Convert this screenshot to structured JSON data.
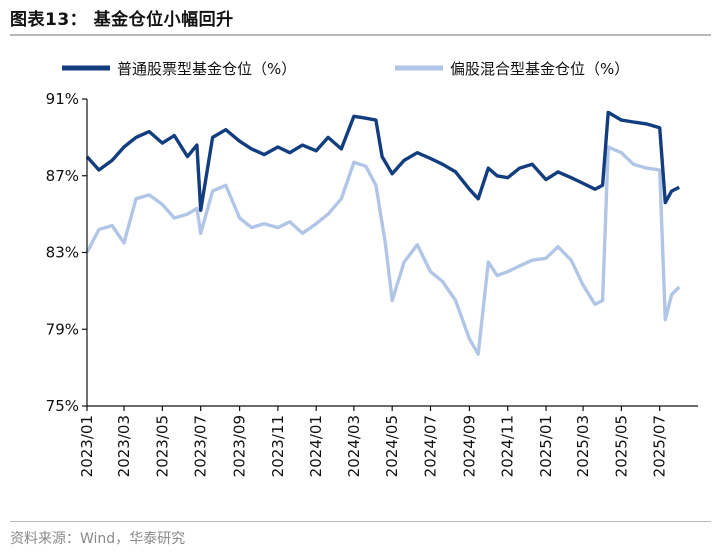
{
  "title": "图表13： 基金仓位小幅回升",
  "source": "资料来源：Wind，华泰研究",
  "chart_data": {
    "type": "line",
    "ylim": [
      75,
      91
    ],
    "yticks": [
      "75%",
      "79%",
      "83%",
      "87%",
      "91%"
    ],
    "ytick_values": [
      75,
      79,
      83,
      87,
      91
    ],
    "xlim": [
      "2023-01-01",
      "2025-08-31"
    ],
    "xticks": [
      "2023/01",
      "2023/03",
      "2023/05",
      "2023/07",
      "2023/09",
      "2023/11",
      "2024/01",
      "2024/03",
      "2024/05",
      "2024/07",
      "2024/09",
      "2024/11",
      "2025/01",
      "2025/03",
      "2025/05",
      "2025/07"
    ],
    "xtick_dates": [
      "2023-01-01",
      "2023-03-01",
      "2023-05-01",
      "2023-07-01",
      "2023-09-01",
      "2023-11-01",
      "2024-01-01",
      "2024-03-01",
      "2024-05-01",
      "2024-07-01",
      "2024-09-01",
      "2024-11-01",
      "2025-01-01",
      "2025-03-01",
      "2025-05-01",
      "2025-07-01"
    ],
    "legend": "top",
    "grid": false,
    "series": [
      {
        "name": "普通股票型基金仓位（%）",
        "color": "#123d7f",
        "x": [
          "2023-01-01",
          "2023-01-20",
          "2023-02-10",
          "2023-03-01",
          "2023-03-20",
          "2023-04-10",
          "2023-05-01",
          "2023-05-20",
          "2023-06-10",
          "2023-06-25",
          "2023-07-01",
          "2023-07-20",
          "2023-08-10",
          "2023-09-01",
          "2023-09-20",
          "2023-10-10",
          "2023-11-01",
          "2023-11-20",
          "2023-12-10",
          "2024-01-01",
          "2024-01-20",
          "2024-02-10",
          "2024-03-01",
          "2024-03-20",
          "2024-04-05",
          "2024-04-15",
          "2024-05-01",
          "2024-05-20",
          "2024-06-10",
          "2024-07-01",
          "2024-07-20",
          "2024-08-10",
          "2024-09-01",
          "2024-09-15",
          "2024-10-01",
          "2024-10-15",
          "2024-11-01",
          "2024-11-20",
          "2024-12-10",
          "2025-01-01",
          "2025-01-20",
          "2025-02-10",
          "2025-03-01",
          "2025-03-20",
          "2025-04-01",
          "2025-04-10",
          "2025-05-01",
          "2025-05-20",
          "2025-06-10",
          "2025-07-01",
          "2025-07-10",
          "2025-07-20",
          "2025-08-01"
        ],
        "y": [
          88.0,
          87.3,
          87.8,
          88.5,
          89.0,
          89.3,
          88.7,
          89.1,
          88.0,
          88.6,
          85.2,
          89.0,
          89.4,
          88.8,
          88.4,
          88.1,
          88.5,
          88.2,
          88.6,
          88.3,
          89.0,
          88.4,
          90.1,
          90.0,
          89.9,
          88.0,
          87.1,
          87.8,
          88.2,
          87.9,
          87.6,
          87.2,
          86.3,
          85.8,
          87.4,
          87.0,
          86.9,
          87.4,
          87.6,
          86.8,
          87.2,
          86.9,
          86.6,
          86.3,
          86.5,
          90.3,
          89.9,
          89.8,
          89.7,
          89.5,
          85.6,
          86.2,
          86.4
        ]
      },
      {
        "name": "偏股混合型基金仓位（%）",
        "color": "#b1c6e6",
        "x": [
          "2023-01-01",
          "2023-01-20",
          "2023-02-10",
          "2023-03-01",
          "2023-03-20",
          "2023-04-10",
          "2023-05-01",
          "2023-05-20",
          "2023-06-10",
          "2023-06-25",
          "2023-07-01",
          "2023-07-20",
          "2023-08-10",
          "2023-09-01",
          "2023-09-20",
          "2023-10-10",
          "2023-11-01",
          "2023-11-20",
          "2023-12-10",
          "2024-01-01",
          "2024-01-20",
          "2024-02-10",
          "2024-03-01",
          "2024-03-20",
          "2024-04-05",
          "2024-04-20",
          "2024-05-01",
          "2024-05-20",
          "2024-06-10",
          "2024-07-01",
          "2024-07-20",
          "2024-08-10",
          "2024-09-01",
          "2024-09-15",
          "2024-10-01",
          "2024-10-15",
          "2024-11-01",
          "2024-11-20",
          "2024-12-10",
          "2025-01-01",
          "2025-01-20",
          "2025-02-10",
          "2025-03-01",
          "2025-03-20",
          "2025-04-01",
          "2025-04-10",
          "2025-05-01",
          "2025-05-20",
          "2025-06-10",
          "2025-07-01",
          "2025-07-10",
          "2025-07-20",
          "2025-08-01"
        ],
        "y": [
          83.0,
          84.2,
          84.4,
          83.5,
          85.8,
          86.0,
          85.5,
          84.8,
          85.0,
          85.3,
          84.0,
          86.2,
          86.5,
          84.8,
          84.3,
          84.5,
          84.3,
          84.6,
          84.0,
          84.5,
          85.0,
          85.8,
          87.7,
          87.5,
          86.5,
          83.5,
          80.5,
          82.5,
          83.4,
          82.0,
          81.5,
          80.5,
          78.5,
          77.7,
          82.5,
          81.8,
          82.0,
          82.3,
          82.6,
          82.7,
          83.3,
          82.6,
          81.3,
          80.3,
          80.5,
          88.5,
          88.2,
          87.6,
          87.4,
          87.3,
          79.5,
          80.8,
          81.2
        ]
      }
    ]
  }
}
